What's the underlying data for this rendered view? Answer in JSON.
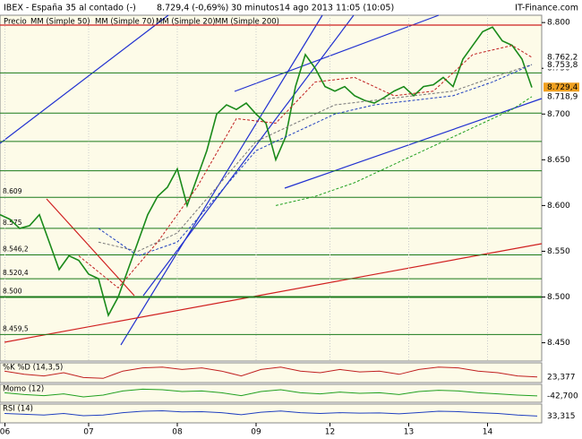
{
  "header": {
    "symbol": "IBEX - España 35 al contado (-)",
    "quote": "8.729,4 (-0,69%)",
    "interval": "30 minutos",
    "date": "14 ago 2013 11:05 (10:05)",
    "source": "IT-Finance.com"
  },
  "chart_data": {
    "type": "line",
    "xlim": [
      0,
      110
    ],
    "xticks": [
      {
        "value": 1,
        "label": "06"
      },
      {
        "value": 18,
        "label": "07"
      },
      {
        "value": 36,
        "label": "08"
      },
      {
        "value": 52,
        "label": "09"
      },
      {
        "value": 67,
        "label": "12"
      },
      {
        "value": 83,
        "label": "13"
      },
      {
        "value": 99,
        "label": "14"
      }
    ],
    "ylim": [
      8.43,
      8.808
    ],
    "yticks": [
      {
        "value": 8.45,
        "label": "8.450"
      },
      {
        "value": 8.5,
        "label": "8.500"
      },
      {
        "value": 8.55,
        "label": "8.550"
      },
      {
        "value": 8.6,
        "label": "8.600"
      },
      {
        "value": 8.65,
        "label": "8.650"
      },
      {
        "value": 8.7,
        "label": "8.700"
      },
      {
        "value": 8.75,
        "label": "8.750"
      },
      {
        "value": 8.8,
        "label": "8.800"
      }
    ],
    "grid": true,
    "series": [
      {
        "name": "Precio",
        "color": "#1a8a1a",
        "x": [
          0,
          2,
          4,
          6,
          8,
          10,
          12,
          14,
          16,
          18,
          20,
          22,
          24,
          26,
          28,
          30,
          32,
          34,
          36,
          38,
          40,
          42,
          44,
          46,
          48,
          50,
          52,
          54,
          56,
          58,
          60,
          62,
          64,
          66,
          68,
          70,
          72,
          74,
          76,
          78,
          80,
          82,
          84,
          86,
          88,
          90,
          92,
          94,
          96,
          98,
          100,
          102,
          104,
          106,
          108
        ],
        "values": [
          8.59,
          8.585,
          8.575,
          8.578,
          8.59,
          8.56,
          8.53,
          8.545,
          8.54,
          8.525,
          8.52,
          8.48,
          8.5,
          8.53,
          8.56,
          8.59,
          8.61,
          8.62,
          8.64,
          8.6,
          8.63,
          8.66,
          8.7,
          8.71,
          8.705,
          8.712,
          8.7,
          8.69,
          8.65,
          8.675,
          8.73,
          8.765,
          8.75,
          8.73,
          8.725,
          8.73,
          8.72,
          8.715,
          8.712,
          8.718,
          8.725,
          8.73,
          8.72,
          8.73,
          8.732,
          8.74,
          8.73,
          8.76,
          8.775,
          8.79,
          8.795,
          8.78,
          8.775,
          8.76,
          8.729
        ]
      },
      {
        "name": "MM (Simple 50)",
        "color": "#777777",
        "x": [
          20,
          28,
          36,
          44,
          52,
          60,
          68,
          76,
          84,
          92,
          100,
          108
        ],
        "values": [
          8.56,
          8.55,
          8.57,
          8.62,
          8.67,
          8.69,
          8.71,
          8.715,
          8.72,
          8.725,
          8.74,
          8.754
        ]
      },
      {
        "name": "MM (Simple 70)",
        "color": "#2040c0",
        "x": [
          20,
          28,
          36,
          44,
          52,
          60,
          68,
          76,
          84,
          92,
          100,
          108
        ],
        "values": [
          8.575,
          8.545,
          8.56,
          8.61,
          8.66,
          8.68,
          8.7,
          8.71,
          8.715,
          8.72,
          8.735,
          8.754
        ]
      },
      {
        "name": "MM (Simple 20)",
        "color": "#c02020",
        "x": [
          16,
          24,
          32,
          40,
          48,
          56,
          64,
          72,
          80,
          88,
          96,
          104,
          108
        ],
        "values": [
          8.545,
          8.51,
          8.56,
          8.62,
          8.695,
          8.69,
          8.735,
          8.74,
          8.72,
          8.725,
          8.765,
          8.775,
          8.762
        ]
      },
      {
        "name": "MM (Simple 200)",
        "color": "#20a020",
        "x": [
          56,
          64,
          72,
          80,
          88,
          96,
          104,
          108
        ],
        "values": [
          8.6,
          8.61,
          8.625,
          8.645,
          8.665,
          8.685,
          8.705,
          8.719
        ]
      }
    ],
    "levels": [
      {
        "value": 8.745
      },
      {
        "value": 8.701
      },
      {
        "value": 8.67
      },
      {
        "value": 8.638
      },
      {
        "value": 8.609,
        "label": "8.609"
      },
      {
        "value": 8.575,
        "label": "8.575"
      },
      {
        "value": 8.546,
        "label": "8.546,2"
      },
      {
        "value": 8.52,
        "label": "8.520,4"
      },
      {
        "value": 8.5,
        "label": "8.500"
      },
      {
        "value": 8.459,
        "label": "8.459,5"
      }
    ],
    "price_tags": [
      {
        "value": 8.7622,
        "label": "8.762,2",
        "color": "#c02020"
      },
      {
        "value": 8.7538,
        "label": "8.753,8",
        "color": "#2040c0"
      },
      {
        "value": 8.7294,
        "label": "8.729,4",
        "color": "#f0a020"
      },
      {
        "value": 8.7189,
        "label": "8.718,9",
        "color": "#20a020"
      }
    ],
    "indicators": [
      {
        "name": "%K %D (14,3,5)",
        "ylim": [
          0,
          100
        ],
        "color": "#c02020",
        "values": [
          60,
          40,
          30,
          50,
          20,
          15,
          60,
          80,
          85,
          70,
          80,
          60,
          30,
          70,
          85,
          60,
          50,
          70,
          55,
          60,
          40,
          70,
          85,
          80,
          60,
          50,
          30,
          23.377
        ],
        "last": {
          "value": 23.377,
          "label": "23,377"
        }
      },
      {
        "name": "Momo (12)",
        "ylim": [
          -120,
          120
        ],
        "color": "#20a020",
        "values": [
          10,
          -20,
          -40,
          -10,
          -60,
          -30,
          40,
          70,
          60,
          30,
          40,
          10,
          -40,
          30,
          60,
          10,
          -10,
          20,
          0,
          10,
          -20,
          30,
          50,
          40,
          10,
          -10,
          -30,
          -42.7
        ],
        "last": {
          "value": -42.7,
          "label": "-42,700"
        }
      },
      {
        "name": "RSI (14)",
        "ylim": [
          0,
          100
        ],
        "color": "#2040c0",
        "values": [
          50,
          45,
          40,
          50,
          35,
          40,
          55,
          65,
          68,
          60,
          62,
          55,
          42,
          58,
          66,
          55,
          50,
          55,
          52,
          54,
          48,
          56,
          65,
          62,
          55,
          50,
          40,
          33.315
        ],
        "last": {
          "value": 33.315,
          "label": "33,315"
        }
      }
    ]
  }
}
